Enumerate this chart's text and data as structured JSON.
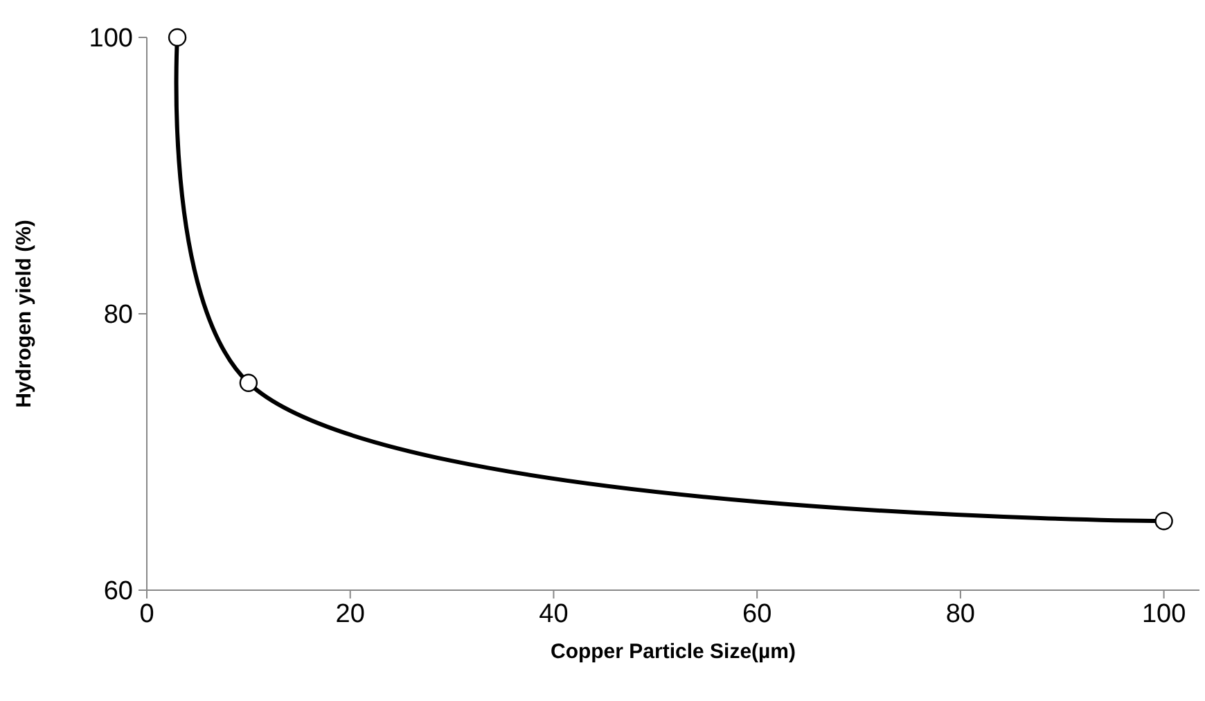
{
  "chart_data": {
    "type": "line",
    "xlabel": "Copper Particle Size(µm)",
    "ylabel": "Hydrogen yield (%)",
    "x": [
      3,
      10,
      100
    ],
    "series": [
      {
        "color": "#000000",
        "values": [
          100,
          75,
          65
        ]
      }
    ],
    "xlim": [
      0,
      103.5
    ],
    "xticks": [
      0,
      20,
      40,
      60,
      80,
      100
    ],
    "ylim": [
      60,
      100
    ],
    "yticks": [
      60,
      80,
      100
    ],
    "grid": false,
    "marker": "circle",
    "line_style": "solid"
  }
}
